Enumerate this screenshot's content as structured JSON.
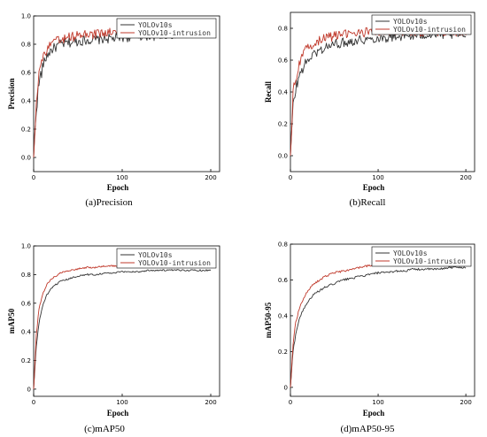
{
  "chart_data": [
    {
      "id": "precision",
      "type": "line",
      "title": "",
      "caption": "(a)Precision",
      "xlabel": "Epoch",
      "ylabel": "Precision",
      "xlim": [
        0,
        210
      ],
      "ylim": [
        -0.1,
        1.0
      ],
      "xticks": [
        0,
        100,
        200
      ],
      "yticks": [
        0.0,
        0.2,
        0.4,
        0.6,
        0.8,
        1.0
      ],
      "ytick_labels": [
        "0.0",
        "0.2",
        "0.4",
        "0.6",
        "0.8",
        "1.0"
      ],
      "legend": "top-right",
      "grid": false,
      "series": [
        {
          "name": "YOLOv10s",
          "color": "#333333",
          "x": [
            0,
            3,
            6,
            10,
            15,
            20,
            25,
            30,
            40,
            50,
            60,
            70,
            80,
            90,
            100,
            110,
            120,
            130,
            140,
            150,
            160,
            170,
            180,
            190,
            200
          ],
          "y": [
            0.0,
            0.35,
            0.52,
            0.64,
            0.72,
            0.76,
            0.78,
            0.8,
            0.81,
            0.82,
            0.83,
            0.83,
            0.84,
            0.84,
            0.85,
            0.85,
            0.86,
            0.86,
            0.86,
            0.87,
            0.87,
            0.87,
            0.88,
            0.88,
            0.88
          ]
        },
        {
          "name": "YOLOv10-intrusion",
          "color": "#c0392b",
          "x": [
            0,
            3,
            6,
            10,
            15,
            20,
            25,
            30,
            40,
            50,
            60,
            70,
            80,
            90,
            100,
            110,
            120,
            130,
            140,
            150,
            160,
            170,
            180,
            190,
            200
          ],
          "y": [
            0.0,
            0.42,
            0.6,
            0.7,
            0.76,
            0.8,
            0.82,
            0.83,
            0.85,
            0.86,
            0.87,
            0.87,
            0.88,
            0.88,
            0.89,
            0.89,
            0.89,
            0.9,
            0.9,
            0.9,
            0.91,
            0.91,
            0.91,
            0.91,
            0.92
          ]
        }
      ]
    },
    {
      "id": "recall",
      "type": "line",
      "title": "",
      "caption": "(b)Recall",
      "xlabel": "Epoch",
      "ylabel": "Recall",
      "xlim": [
        0,
        210
      ],
      "ylim": [
        -0.1,
        0.9
      ],
      "xticks": [
        0,
        100,
        200
      ],
      "yticks": [
        0.0,
        0.2,
        0.4,
        0.6,
        0.8
      ],
      "ytick_labels": [
        "0.0",
        "0.2",
        "0.4",
        "0.6",
        "0.8"
      ],
      "legend": "top-right",
      "grid": false,
      "series": [
        {
          "name": "YOLOv10s",
          "color": "#333333",
          "x": [
            0,
            3,
            6,
            10,
            15,
            20,
            25,
            30,
            40,
            50,
            60,
            70,
            80,
            90,
            100,
            110,
            120,
            130,
            140,
            150,
            160,
            170,
            180,
            190,
            200
          ],
          "y": [
            0.0,
            0.3,
            0.42,
            0.5,
            0.56,
            0.6,
            0.63,
            0.65,
            0.68,
            0.7,
            0.71,
            0.72,
            0.73,
            0.73,
            0.74,
            0.74,
            0.75,
            0.75,
            0.75,
            0.76,
            0.76,
            0.76,
            0.76,
            0.76,
            0.76
          ]
        },
        {
          "name": "YOLOv10-intrusion",
          "color": "#c0392b",
          "x": [
            0,
            3,
            6,
            10,
            15,
            20,
            25,
            30,
            40,
            50,
            60,
            70,
            80,
            90,
            100,
            110,
            120,
            130,
            140,
            150,
            160,
            170,
            180,
            190,
            200
          ],
          "y": [
            0.0,
            0.38,
            0.5,
            0.58,
            0.64,
            0.68,
            0.7,
            0.72,
            0.74,
            0.75,
            0.76,
            0.77,
            0.77,
            0.78,
            0.78,
            0.78,
            0.78,
            0.78,
            0.78,
            0.78,
            0.78,
            0.78,
            0.78,
            0.78,
            0.78
          ]
        }
      ]
    },
    {
      "id": "map50",
      "type": "line",
      "title": "",
      "caption": "(c)mAP50",
      "xlabel": "Epoch",
      "ylabel": "mAP50",
      "xlim": [
        0,
        210
      ],
      "ylim": [
        -0.05,
        1.0
      ],
      "xticks": [
        0,
        100,
        200
      ],
      "yticks": [
        0.0,
        0.2,
        0.4,
        0.6,
        0.8,
        1.0
      ],
      "ytick_labels": [
        "0",
        "0.2",
        "0.4",
        "0.6",
        "0.8",
        "1.0"
      ],
      "legend": "top-right",
      "grid": false,
      "series": [
        {
          "name": "YOLOv10s",
          "color": "#333333",
          "x": [
            0,
            3,
            6,
            10,
            15,
            20,
            25,
            30,
            40,
            50,
            60,
            70,
            80,
            90,
            100,
            110,
            120,
            130,
            140,
            150,
            160,
            170,
            180,
            190,
            200
          ],
          "y": [
            0.0,
            0.3,
            0.46,
            0.58,
            0.66,
            0.7,
            0.73,
            0.75,
            0.77,
            0.79,
            0.8,
            0.8,
            0.81,
            0.81,
            0.82,
            0.82,
            0.82,
            0.83,
            0.83,
            0.83,
            0.83,
            0.83,
            0.83,
            0.83,
            0.83
          ]
        },
        {
          "name": "YOLOv10-intrusion",
          "color": "#c0392b",
          "x": [
            0,
            3,
            6,
            10,
            15,
            20,
            25,
            30,
            40,
            50,
            60,
            70,
            80,
            90,
            100,
            110,
            120,
            130,
            140,
            150,
            160,
            170,
            180,
            190,
            200
          ],
          "y": [
            0.0,
            0.38,
            0.56,
            0.66,
            0.73,
            0.77,
            0.79,
            0.81,
            0.83,
            0.84,
            0.85,
            0.85,
            0.86,
            0.86,
            0.86,
            0.87,
            0.87,
            0.87,
            0.87,
            0.87,
            0.87,
            0.87,
            0.87,
            0.87,
            0.87
          ]
        }
      ]
    },
    {
      "id": "map50-95",
      "type": "line",
      "title": "",
      "caption": "(d)mAP50-95",
      "xlabel": "Epoch",
      "ylabel": "mAP50-95",
      "xlim": [
        0,
        210
      ],
      "ylim": [
        -0.05,
        0.8
      ],
      "xticks": [
        0,
        100,
        200
      ],
      "yticks": [
        0.0,
        0.2,
        0.4,
        0.6,
        0.8
      ],
      "ytick_labels": [
        "0",
        "0.2",
        "0.4",
        "0.6",
        "0.8"
      ],
      "legend": "top-right",
      "grid": false,
      "series": [
        {
          "name": "YOLOv10s",
          "color": "#333333",
          "x": [
            0,
            3,
            6,
            10,
            15,
            20,
            25,
            30,
            40,
            50,
            60,
            70,
            80,
            90,
            100,
            110,
            120,
            130,
            140,
            150,
            160,
            170,
            180,
            190,
            200
          ],
          "y": [
            0.0,
            0.2,
            0.3,
            0.38,
            0.44,
            0.48,
            0.51,
            0.53,
            0.56,
            0.58,
            0.6,
            0.61,
            0.62,
            0.63,
            0.64,
            0.64,
            0.65,
            0.65,
            0.66,
            0.66,
            0.66,
            0.66,
            0.67,
            0.67,
            0.67
          ]
        },
        {
          "name": "YOLOv10-intrusion",
          "color": "#c0392b",
          "x": [
            0,
            3,
            6,
            10,
            15,
            20,
            25,
            30,
            40,
            50,
            60,
            70,
            80,
            90,
            100,
            110,
            120,
            130,
            140,
            150,
            160,
            170,
            180,
            190,
            200
          ],
          "y": [
            0.0,
            0.24,
            0.36,
            0.44,
            0.5,
            0.54,
            0.57,
            0.59,
            0.62,
            0.64,
            0.65,
            0.66,
            0.67,
            0.68,
            0.68,
            0.69,
            0.69,
            0.69,
            0.7,
            0.7,
            0.7,
            0.7,
            0.7,
            0.7,
            0.7
          ]
        }
      ]
    }
  ]
}
